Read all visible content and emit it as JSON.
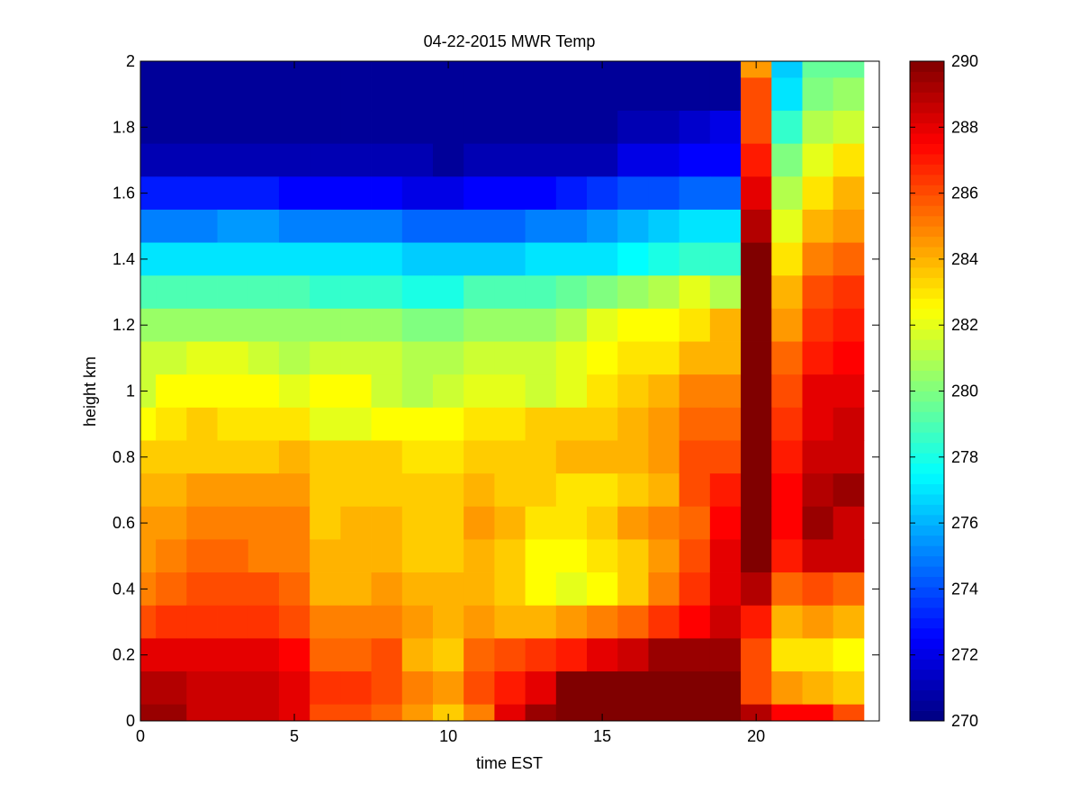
{
  "chart_data": {
    "type": "heatmap",
    "title": "04-22-2015 MWR Temp",
    "xlabel": "time EST",
    "ylabel": "height km",
    "xlim": [
      0,
      24
    ],
    "ylim": [
      0,
      2
    ],
    "x_ticks": [
      "0",
      "5",
      "10",
      "15",
      "20"
    ],
    "y_ticks": [
      "0",
      "0.2",
      "0.4",
      "0.6",
      "0.8",
      "1",
      "1.2",
      "1.4",
      "1.6",
      "1.8",
      "2"
    ],
    "colorbar": {
      "range": [
        270,
        290
      ],
      "ticks": [
        "270",
        "272",
        "274",
        "276",
        "278",
        "280",
        "282",
        "284",
        "286",
        "288",
        "290"
      ],
      "colormap": "jet"
    },
    "x_edges": [
      0,
      0.5,
      1.5,
      2.5,
      3.5,
      4.5,
      5.5,
      6.5,
      7.5,
      8.5,
      9.5,
      10.5,
      11.5,
      12.5,
      13.5,
      14.5,
      15.5,
      16.5,
      17.5,
      18.5,
      19.5,
      20.5,
      21.5,
      22.5,
      23.5
    ],
    "y_edges": [
      0,
      0.05,
      0.15,
      0.25,
      0.35,
      0.45,
      0.55,
      0.65,
      0.75,
      0.85,
      0.95,
      1.05,
      1.15,
      1.25,
      1.35,
      1.45,
      1.55,
      1.65,
      1.75,
      1.85,
      1.95,
      2.0
    ],
    "z_rows_top_to_bottom": [
      [
        270.5,
        270.5,
        270.5,
        270.5,
        270.5,
        270.5,
        270.5,
        270.5,
        270.5,
        270.5,
        270.5,
        270.5,
        270.5,
        270.5,
        270.5,
        270.5,
        270.5,
        270.5,
        270.5,
        270.5,
        284.5,
        276.5,
        279.5,
        279.5
      ],
      [
        270.5,
        270.5,
        270.5,
        270.5,
        270.5,
        270.5,
        270.5,
        270.5,
        270.5,
        270.5,
        270.5,
        270.5,
        270.5,
        270.5,
        270.5,
        270.5,
        270.5,
        270.5,
        270.5,
        270.5,
        286.0,
        277.0,
        280.0,
        280.5
      ],
      [
        270.5,
        270.5,
        270.5,
        270.5,
        270.5,
        270.5,
        270.5,
        270.5,
        270.5,
        270.5,
        270.5,
        270.5,
        270.5,
        270.5,
        270.5,
        270.5,
        271.0,
        271.0,
        271.5,
        272.0,
        286.0,
        278.5,
        281.0,
        281.5
      ],
      [
        271.0,
        271.0,
        271.0,
        271.0,
        271.0,
        271.0,
        271.0,
        271.0,
        271.0,
        271.0,
        270.5,
        271.0,
        271.0,
        271.0,
        271.0,
        271.0,
        272.0,
        272.0,
        272.5,
        272.5,
        287.0,
        280.0,
        282.0,
        283.0
      ],
      [
        273.0,
        273.0,
        273.0,
        273.0,
        273.0,
        272.5,
        272.5,
        272.5,
        272.5,
        272.0,
        272.0,
        272.5,
        272.5,
        272.5,
        273.0,
        273.5,
        274.0,
        274.0,
        274.5,
        274.5,
        288.0,
        281.0,
        283.0,
        284.0
      ],
      [
        275.0,
        275.0,
        275.0,
        275.5,
        275.5,
        275.0,
        275.0,
        275.0,
        275.0,
        274.5,
        274.5,
        274.5,
        274.5,
        275.0,
        275.0,
        275.5,
        276.0,
        276.5,
        277.0,
        277.0,
        289.0,
        282.0,
        284.0,
        284.5
      ],
      [
        277.0,
        277.0,
        277.0,
        277.0,
        277.0,
        277.0,
        277.0,
        277.0,
        277.0,
        276.5,
        276.5,
        276.5,
        276.5,
        277.0,
        277.0,
        277.0,
        277.5,
        278.0,
        278.5,
        278.5,
        290.0,
        283.0,
        285.0,
        285.5
      ],
      [
        279.0,
        279.0,
        279.0,
        279.0,
        279.0,
        279.0,
        278.5,
        278.5,
        278.5,
        278.0,
        278.0,
        279.0,
        279.0,
        279.0,
        279.5,
        280.0,
        280.5,
        281.0,
        282.0,
        281.0,
        290.0,
        284.0,
        286.0,
        286.5
      ],
      [
        280.5,
        280.5,
        280.5,
        280.5,
        280.5,
        280.5,
        280.5,
        280.5,
        280.5,
        280.0,
        280.0,
        280.5,
        280.5,
        280.5,
        281.0,
        282.0,
        282.5,
        282.5,
        283.0,
        284.0,
        290.0,
        284.5,
        286.5,
        287.0
      ],
      [
        281.5,
        281.5,
        282.0,
        282.0,
        281.5,
        281.0,
        281.5,
        281.5,
        281.5,
        281.0,
        281.0,
        281.5,
        281.5,
        281.5,
        282.0,
        282.5,
        283.0,
        283.0,
        284.0,
        284.0,
        290.0,
        285.5,
        287.0,
        287.5
      ],
      [
        281.5,
        282.5,
        282.5,
        282.5,
        282.5,
        282.0,
        282.5,
        282.5,
        281.5,
        281.0,
        281.5,
        282.0,
        282.0,
        281.5,
        282.0,
        283.0,
        283.5,
        284.0,
        285.0,
        285.0,
        290.0,
        286.0,
        288.0,
        288.0
      ],
      [
        282.5,
        283.0,
        283.5,
        283.0,
        283.0,
        283.0,
        282.0,
        282.0,
        282.5,
        282.5,
        282.5,
        283.0,
        283.0,
        283.5,
        283.5,
        283.5,
        284.0,
        284.5,
        285.5,
        285.5,
        290.0,
        286.5,
        288.0,
        288.5
      ],
      [
        283.5,
        283.5,
        283.5,
        283.5,
        283.5,
        284.0,
        283.5,
        283.5,
        283.5,
        283.0,
        283.0,
        283.5,
        283.5,
        283.5,
        284.0,
        284.0,
        284.0,
        284.5,
        286.0,
        286.0,
        290.0,
        287.0,
        288.5,
        288.5
      ],
      [
        284.0,
        284.0,
        284.5,
        284.5,
        284.5,
        284.5,
        283.5,
        283.5,
        283.5,
        283.5,
        283.5,
        284.0,
        283.5,
        283.5,
        283.0,
        283.0,
        283.5,
        284.0,
        286.0,
        287.0,
        290.0,
        287.5,
        289.0,
        289.5
      ],
      [
        284.5,
        284.5,
        285.0,
        285.0,
        285.0,
        285.0,
        283.5,
        284.0,
        284.0,
        283.5,
        283.5,
        284.5,
        284.0,
        283.0,
        283.0,
        283.5,
        284.5,
        285.0,
        285.5,
        287.5,
        290.0,
        287.5,
        289.5,
        288.5
      ],
      [
        284.5,
        285.0,
        285.5,
        285.5,
        285.0,
        285.0,
        284.0,
        284.0,
        284.0,
        283.5,
        283.5,
        284.0,
        283.5,
        282.5,
        282.5,
        283.0,
        283.5,
        284.5,
        286.0,
        288.0,
        290.0,
        287.0,
        288.5,
        288.5
      ],
      [
        285.0,
        285.5,
        286.0,
        286.0,
        286.0,
        285.5,
        284.0,
        284.0,
        284.5,
        284.0,
        284.0,
        284.0,
        283.5,
        282.5,
        282.0,
        282.5,
        283.5,
        285.0,
        286.5,
        288.0,
        289.0,
        285.5,
        286.0,
        285.5
      ],
      [
        286.0,
        286.5,
        286.5,
        286.5,
        286.5,
        286.0,
        285.0,
        285.0,
        285.0,
        284.5,
        284.0,
        284.5,
        284.0,
        284.0,
        284.5,
        285.0,
        285.5,
        286.5,
        287.5,
        288.5,
        287.0,
        284.0,
        284.5,
        284.0
      ],
      [
        288.0,
        288.0,
        288.0,
        288.0,
        288.0,
        287.5,
        285.5,
        285.5,
        286.0,
        284.0,
        283.5,
        285.5,
        286.0,
        286.5,
        287.0,
        288.0,
        288.5,
        289.5,
        289.5,
        289.5,
        286.0,
        283.0,
        283.0,
        282.5
      ],
      [
        289.0,
        289.0,
        288.5,
        288.5,
        288.5,
        288.0,
        286.5,
        286.5,
        286.0,
        285.0,
        284.5,
        286.0,
        287.0,
        288.0,
        290.0,
        290.0,
        290.0,
        290.0,
        290.0,
        290.0,
        286.0,
        284.5,
        284.0,
        283.5
      ],
      [
        289.5,
        289.5,
        288.5,
        288.5,
        288.5,
        288.0,
        286.0,
        286.0,
        285.5,
        284.5,
        283.5,
        285.0,
        288.0,
        289.5,
        290.0,
        290.0,
        290.0,
        290.0,
        290.0,
        290.0,
        289.0,
        287.5,
        287.5,
        286.0
      ]
    ]
  }
}
